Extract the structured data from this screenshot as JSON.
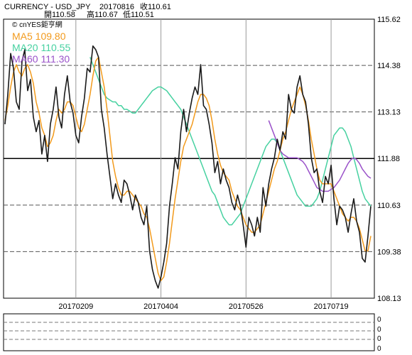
{
  "header": {
    "symbol": "CURRENCY - USD_JPY",
    "date": "20170816",
    "close": "收110.61",
    "open": "開110.58",
    "high": "高110.67",
    "low": "低110.51"
  },
  "watermark": "cnYES鉅亨網",
  "legend": [
    {
      "label": "MA5 109.80",
      "color": "#F29A1C"
    },
    {
      "label": "MA20 110.55",
      "color": "#46D1A0"
    },
    {
      "label": "MA60 111.30",
      "color": "#9A52C9"
    }
  ],
  "sub_panel": {
    "tick_labels": [
      "0",
      "0",
      "0",
      "0"
    ]
  },
  "chart_data": {
    "type": "line",
    "x_ticks": [
      "20170209",
      "20170404",
      "20170526",
      "20170719"
    ],
    "y_ticks": [
      115.62,
      114.38,
      113.13,
      111.88,
      110.63,
      109.38,
      108.13
    ],
    "ylim": [
      108.13,
      115.62
    ],
    "reference_line": 111.88,
    "series": [
      {
        "name": "USD_JPY",
        "color": "#1a1a1a",
        "values": [
          112.8,
          113.6,
          114.7,
          114.3,
          113.4,
          113.2,
          114.5,
          114.8,
          113.7,
          114.0,
          113.0,
          112.6,
          112.9,
          112.0,
          112.5,
          111.8,
          112.8,
          113.2,
          113.8,
          113.0,
          112.7,
          113.6,
          114.1,
          113.4,
          113.1,
          112.5,
          112.3,
          113.0,
          113.5,
          114.3,
          114.2,
          114.9,
          114.8,
          114.6,
          113.2,
          112.7,
          112.0,
          111.4,
          110.8,
          111.2,
          110.9,
          110.7,
          111.3,
          111.2,
          110.9,
          110.5,
          110.9,
          110.7,
          110.3,
          110.1,
          110.6,
          109.4,
          108.9,
          108.6,
          108.4,
          108.7,
          109.1,
          109.6,
          110.6,
          111.2,
          111.9,
          111.6,
          112.6,
          113.2,
          112.6,
          113.1,
          113.5,
          113.8,
          113.6,
          114.4,
          113.3,
          113.2,
          112.8,
          112.3,
          111.5,
          111.8,
          111.2,
          111.6,
          111.3,
          111.1,
          110.7,
          110.5,
          110.9,
          110.6,
          110.1,
          109.5,
          110.3,
          110.1,
          109.8,
          110.3,
          109.9,
          111.1,
          110.6,
          111.2,
          111.6,
          111.9,
          112.4,
          112.1,
          112.6,
          112.4,
          113.6,
          113.2,
          113.1,
          113.8,
          114.1,
          113.6,
          113.4,
          112.8,
          111.9,
          111.5,
          111.6,
          111.0,
          110.7,
          111.4,
          111.2,
          111.7,
          110.8,
          110.1,
          110.6,
          110.5,
          110.3,
          109.9,
          110.4,
          110.8,
          110.2,
          109.9,
          109.2,
          109.1,
          109.8,
          110.6
        ]
      },
      {
        "name": "MA5",
        "color": "#F29A1C",
        "values": [
          112.9,
          113.3,
          113.8,
          114.2,
          114.4,
          114.2,
          114.1,
          114.3,
          114.4,
          114.2,
          113.9,
          113.4,
          113.1,
          112.7,
          112.5,
          112.2,
          112.3,
          112.5,
          112.9,
          113.2,
          113.1,
          113.2,
          113.4,
          113.4,
          113.3,
          113.0,
          112.7,
          112.6,
          112.8,
          113.2,
          113.6,
          114.1,
          114.5,
          114.6,
          114.2,
          113.8,
          113.2,
          112.5,
          111.8,
          111.4,
          111.1,
          110.9,
          110.9,
          111.0,
          111.0,
          110.9,
          110.8,
          110.7,
          110.6,
          110.4,
          110.3,
          110.0,
          109.6,
          109.2,
          108.8,
          108.6,
          108.7,
          109.1,
          109.6,
          110.2,
          110.8,
          111.3,
          111.8,
          112.2,
          112.4,
          112.6,
          112.8,
          113.1,
          113.4,
          113.6,
          113.6,
          113.5,
          113.3,
          112.9,
          112.4,
          112.0,
          111.7,
          111.5,
          111.4,
          111.3,
          111.0,
          110.8,
          110.6,
          110.5,
          110.3,
          110.1,
          110.0,
          109.9,
          109.9,
          110.0,
          110.1,
          110.4,
          110.7,
          111.0,
          111.3,
          111.6,
          111.8,
          112.1,
          112.4,
          112.6,
          112.9,
          113.2,
          113.4,
          113.6,
          113.8,
          113.6,
          113.3,
          112.9,
          112.4,
          112.0,
          111.6,
          111.3,
          111.2,
          111.2,
          111.2,
          111.2,
          111.0,
          110.8,
          110.6,
          110.4,
          110.3,
          110.2,
          110.3,
          110.3,
          110.2,
          110.0,
          109.7,
          109.4,
          109.4,
          109.8
        ]
      },
      {
        "name": "MA20",
        "color": "#46D1A0",
        "values": [
          114.6,
          114.4,
          114.2,
          114.0,
          113.8,
          113.6,
          113.5,
          113.45,
          113.4,
          113.4,
          113.3,
          113.3,
          113.2,
          113.2,
          113.15,
          113.1,
          113.1,
          113.2,
          113.3,
          113.4,
          113.5,
          113.6,
          113.7,
          113.75,
          113.8,
          113.8,
          113.75,
          113.7,
          113.6,
          113.5,
          113.4,
          113.3,
          113.2,
          113.0,
          112.8,
          112.6,
          112.4,
          112.2,
          112.0,
          111.8,
          111.6,
          111.4,
          111.2,
          111.0,
          110.9,
          110.7,
          110.5,
          110.3,
          110.2,
          110.1,
          110.1,
          110.2,
          110.3,
          110.4,
          110.6,
          110.8,
          111.0,
          111.2,
          111.4,
          111.6,
          111.8,
          112.0,
          112.2,
          112.3,
          112.4,
          112.4,
          112.3,
          112.1,
          111.9,
          111.7,
          111.5,
          111.3,
          111.1,
          110.9,
          110.8,
          110.7,
          110.6,
          110.6,
          110.6,
          110.7,
          110.8,
          111.0,
          111.3,
          111.6,
          111.9,
          112.2,
          112.5,
          112.6,
          112.7,
          112.7,
          112.6,
          112.4,
          112.2,
          111.9,
          111.6,
          111.3,
          111.0,
          110.8,
          110.7,
          110.6
        ],
        "x_start_index": 30
      },
      {
        "name": "MA60",
        "color": "#9A52C9",
        "values": [
          112.9,
          112.7,
          112.5,
          112.3,
          112.1,
          112.0,
          111.95,
          111.9,
          111.9,
          111.9,
          111.9,
          111.85,
          111.8,
          111.7,
          111.55,
          111.4,
          111.25,
          111.1,
          111.05,
          111.0,
          111.0,
          111.0,
          111.05,
          111.1,
          111.2,
          111.3,
          111.45,
          111.6,
          111.75,
          111.85,
          111.9,
          111.85,
          111.75,
          111.6,
          111.5,
          111.4,
          111.35
        ],
        "x_start_index": 93
      }
    ]
  }
}
